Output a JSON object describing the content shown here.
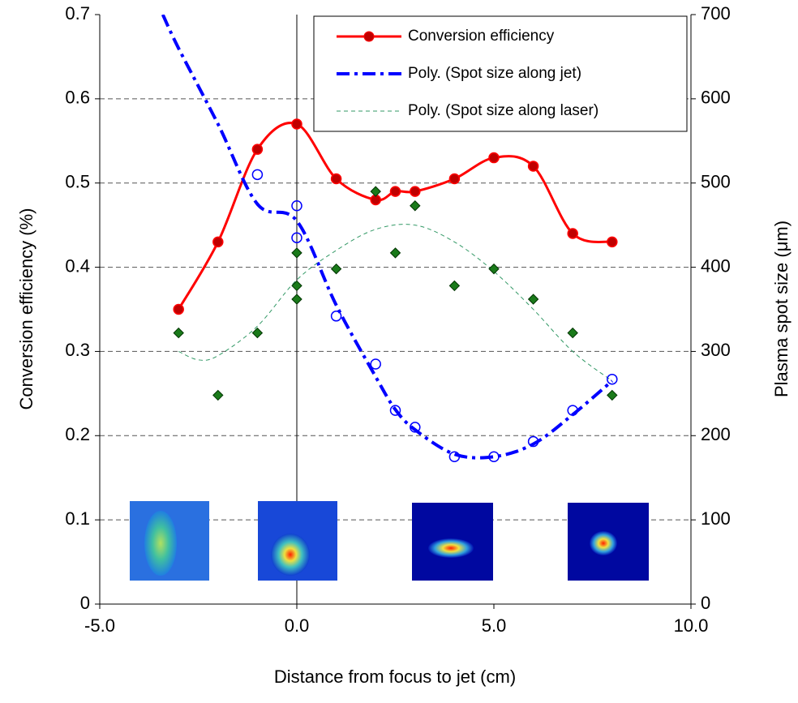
{
  "chart_data": {
    "type": "scatter",
    "x_label": "Distance from focus to jet (cm)",
    "y_label": "Conversion efficiency (%)",
    "y2_label": "Plasma spot size (μm)",
    "xlim": [
      -5,
      10
    ],
    "xticks": [
      {
        "value": -5,
        "label": "-5.0"
      },
      {
        "value": 0,
        "label": "0.0"
      },
      {
        "value": 5,
        "label": "5.0"
      },
      {
        "value": 10,
        "label": "10.0"
      }
    ],
    "ylim": [
      0,
      0.7
    ],
    "yticks": [
      0,
      0.1,
      0.2,
      0.3,
      0.4,
      0.5,
      0.6,
      0.7
    ],
    "y2lim": [
      0,
      700
    ],
    "y2ticks": [
      0,
      100,
      200,
      300,
      400,
      500,
      600,
      700
    ],
    "grid": true,
    "legend": "top-right",
    "series": [
      {
        "name": "Conversion efficiency",
        "color": "#ff0000",
        "mode": "smooth-line-markers",
        "x": [
          -3,
          -2,
          -1,
          0,
          1,
          2,
          2.5,
          3,
          4,
          5,
          6,
          7,
          8
        ],
        "values": [
          0.35,
          0.43,
          0.54,
          0.57,
          0.505,
          0.48,
          0.49,
          0.49,
          0.505,
          0.53,
          0.52,
          0.44,
          0.43
        ]
      },
      {
        "name": "Poly. (Spot size along jet)",
        "color": "#0000ff",
        "mode": "dash-dot-line",
        "axis": "y2",
        "x": [
          -3.4,
          -3,
          -2,
          -1,
          0,
          1,
          2,
          2.5,
          3,
          4,
          5,
          6,
          7,
          8
        ],
        "values": [
          700,
          660,
          570,
          475,
          455,
          355,
          270,
          231,
          207,
          178,
          175,
          190,
          225,
          265
        ]
      },
      {
        "name": "Poly. (Spot size along laser)",
        "color": "#339966",
        "mode": "thin-dashed-line",
        "axis": "y2",
        "x": [
          -3,
          -2.5,
          -2,
          -1,
          0,
          1,
          2,
          3,
          4,
          5,
          6,
          7,
          8
        ],
        "values": [
          300,
          290,
          295,
          330,
          385,
          420,
          445,
          450,
          430,
          395,
          350,
          300,
          265
        ]
      },
      {
        "color": "#0000ff",
        "mode": "open-circles",
        "axis": "y2",
        "x": [
          -1,
          0,
          0,
          1,
          2,
          2.5,
          3,
          4,
          5,
          6,
          7,
          8
        ],
        "values": [
          510,
          473,
          435,
          342,
          285,
          230,
          210,
          175,
          175,
          193,
          230,
          267
        ]
      },
      {
        "color": "#1a7a1a",
        "mode": "diamonds",
        "axis": "y2",
        "x": [
          -3,
          -2,
          -1,
          0,
          0,
          0,
          1,
          2,
          2.5,
          3,
          4,
          5,
          6,
          7,
          8
        ],
        "values": [
          322,
          248,
          322,
          417,
          378,
          362,
          398,
          490,
          417,
          473,
          378,
          398,
          362,
          322,
          248
        ]
      }
    ]
  }
}
